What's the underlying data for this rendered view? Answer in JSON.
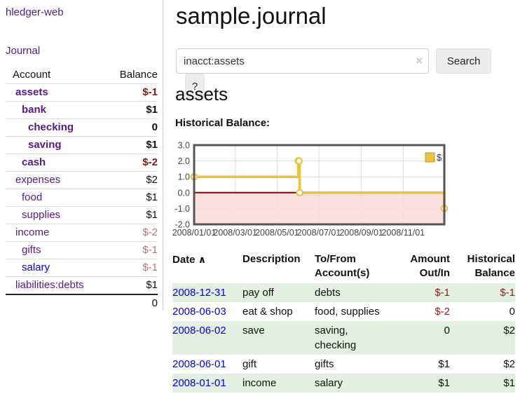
{
  "app": {
    "title": "hledger-web"
  },
  "sidebar": {
    "journal_link": "Journal",
    "table": {
      "account_header": "Account",
      "balance_header": "Balance",
      "rows": [
        {
          "name": "assets",
          "depth": 0,
          "bold": true,
          "name_color": "purple",
          "balance": "$-1",
          "balance_style": "neg-strong"
        },
        {
          "name": "bank",
          "depth": 1,
          "bold": true,
          "name_color": "purple",
          "balance": "$1",
          "balance_style": "pos"
        },
        {
          "name": "checking",
          "depth": 2,
          "bold": true,
          "name_color": "purple",
          "balance": "0",
          "balance_style": "pos"
        },
        {
          "name": "saving",
          "depth": 2,
          "bold": true,
          "name_color": "purple",
          "balance": "$1",
          "balance_style": "pos"
        },
        {
          "name": "cash",
          "depth": 1,
          "bold": true,
          "name_color": "purple",
          "balance": "$-2",
          "balance_style": "neg-strong"
        },
        {
          "name": "expenses",
          "depth": 0,
          "bold": false,
          "name_color": "purple",
          "balance": "$2",
          "balance_style": "pos"
        },
        {
          "name": "food",
          "depth": 1,
          "bold": false,
          "name_color": "purple",
          "balance": "$1",
          "balance_style": "pos"
        },
        {
          "name": "supplies",
          "depth": 1,
          "bold": false,
          "name_color": "purple",
          "balance": "$1",
          "balance_style": "pos"
        },
        {
          "name": "income",
          "depth": 0,
          "bold": false,
          "name_color": "purple",
          "balance": "$-2",
          "balance_style": "neg-light"
        },
        {
          "name": "gifts",
          "depth": 1,
          "bold": false,
          "name_color": "purple",
          "balance": "$-1",
          "balance_style": "neg-light"
        },
        {
          "name": "salary",
          "depth": 1,
          "bold": false,
          "name_color": "blue",
          "balance": "$-1",
          "balance_style": "neg-light"
        },
        {
          "name": "liabilities:debts",
          "depth": 0,
          "bold": false,
          "name_color": "purple",
          "balance": "$1",
          "balance_style": "pos"
        }
      ],
      "total": "0"
    }
  },
  "header": {
    "title": "sample.journal"
  },
  "search": {
    "value": "inacct:assets",
    "clear_icon": "×",
    "button_label": "Search",
    "help_label": "?"
  },
  "account_page": {
    "title": "assets",
    "chart_label": "Historical Balance:"
  },
  "chart_data": {
    "type": "line",
    "step": true,
    "title": "Historical Balance:",
    "series": [
      {
        "name": "$",
        "color": "#EDC240",
        "points": [
          {
            "date": "2008-01-01",
            "value": 1
          },
          {
            "date": "2008-06-01",
            "value": 2
          },
          {
            "date": "2008-06-02",
            "value": 2
          },
          {
            "date": "2008-06-03",
            "value": 0
          },
          {
            "date": "2008-12-31",
            "value": -1
          }
        ]
      }
    ],
    "x_tick_labels": [
      "2008/01/01",
      "2008/03/01",
      "2008/05/01",
      "2008/07/01",
      "2008/09/01",
      "2008/11/01"
    ],
    "y_tick_labels": [
      "3.0",
      "2.0",
      "1.0",
      "0.0",
      "-1.0",
      "-2.0"
    ],
    "ylim": [
      -2,
      3
    ],
    "xlim_dates": [
      "2008-01-01",
      "2008-12-31"
    ],
    "grid": true,
    "legend_position": "top-right",
    "negative_region_color": "#FBD9D9",
    "zero_line_color": "#8B0000",
    "grid_color": "#DCDCDC",
    "border_color": "#555555"
  },
  "register": {
    "sort_icon": "∧",
    "columns": [
      {
        "label": "Date",
        "align": "left"
      },
      {
        "label": "Description",
        "align": "left"
      },
      {
        "label": "To/From Account(s)",
        "align": "left"
      },
      {
        "label": "Amount Out/In",
        "align": "right"
      },
      {
        "label": "Historical Balance",
        "align": "right"
      }
    ],
    "rows": [
      {
        "date": "2008-12-31",
        "description": "pay off",
        "accounts": "debts",
        "amount": "$-1",
        "amount_negative": true,
        "balance": "$-1",
        "balance_negative": true
      },
      {
        "date": "2008-06-03",
        "description": "eat & shop",
        "accounts": "food, supplies",
        "amount": "$-2",
        "amount_negative": true,
        "balance": "0",
        "balance_negative": false
      },
      {
        "date": "2008-06-02",
        "description": "save",
        "accounts": "saving, checking",
        "amount": "0",
        "amount_negative": false,
        "balance": "$2",
        "balance_negative": false
      },
      {
        "date": "2008-06-01",
        "description": "gift",
        "accounts": "gifts",
        "amount": "$1",
        "amount_negative": false,
        "balance": "$2",
        "balance_negative": false
      },
      {
        "date": "2008-01-01",
        "description": "income",
        "accounts": "salary",
        "amount": "$1",
        "amount_negative": false,
        "balance": "$1",
        "balance_negative": false
      }
    ]
  },
  "colors": {
    "link_purple": "#551A8B",
    "link_blue": "#0000EE",
    "negative_strong": "#8B1414",
    "negative_light": "#C36F6F",
    "register_negative": "#8F1D1D",
    "row_green": "#E2EFE1",
    "chart_gold": "#EDC240"
  }
}
